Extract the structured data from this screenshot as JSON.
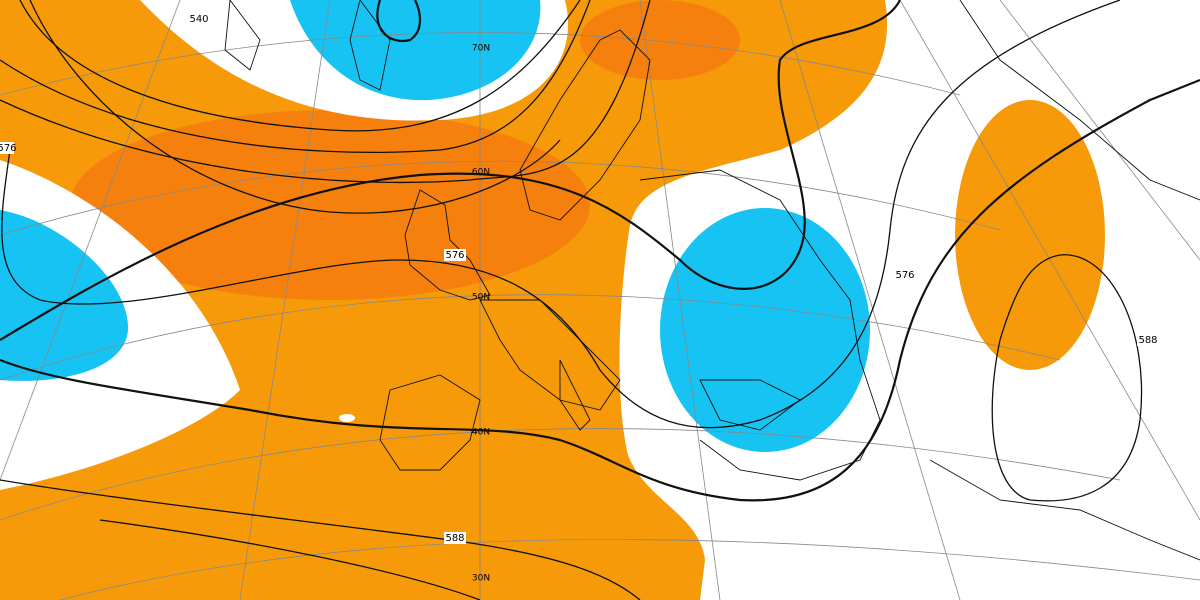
{
  "map": {
    "contour_labels": [
      "540",
      "576",
      "576",
      "576",
      "588",
      "588"
    ],
    "latitude_labels": [
      "70N",
      "60N",
      "50N",
      "40N",
      "30N"
    ]
  }
}
